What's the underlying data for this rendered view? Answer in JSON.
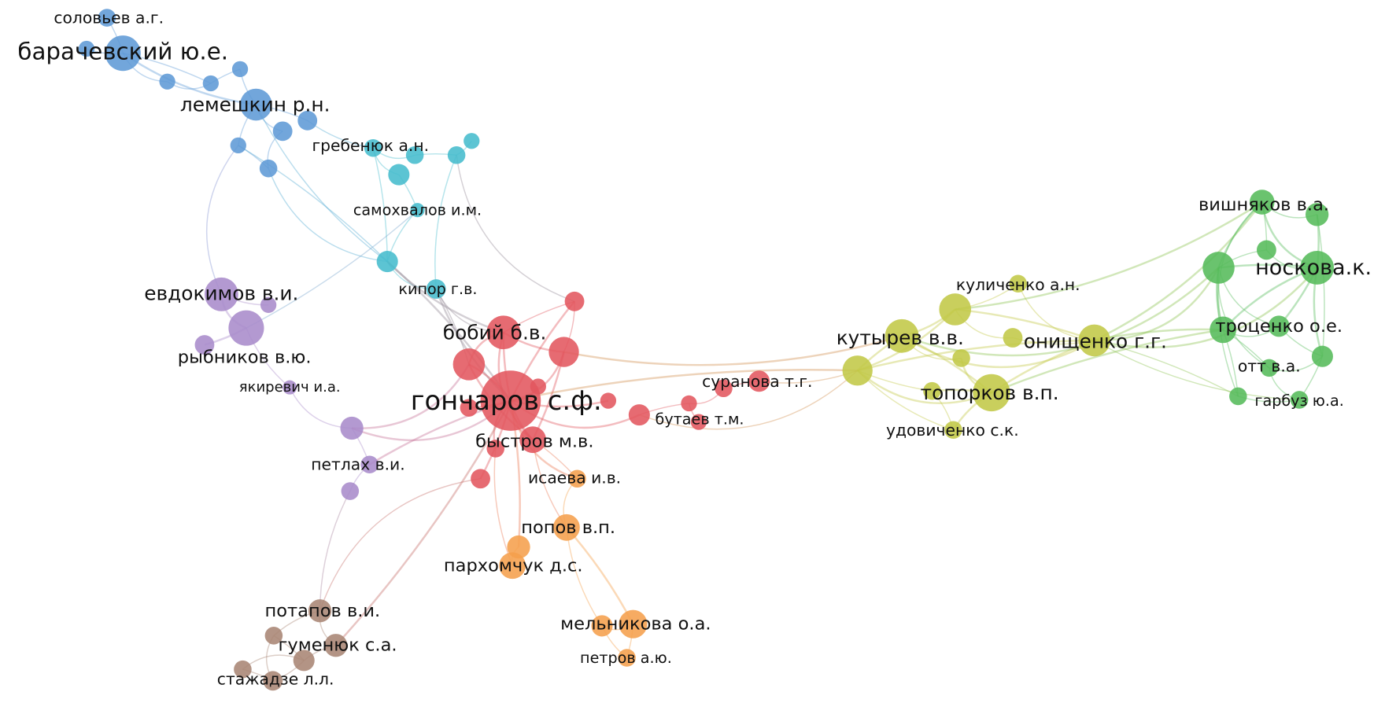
{
  "network": {
    "clusters": {
      "blue": "#5f9ad6",
      "cyan": "#45bccd",
      "purple": "#a98bcb",
      "red": "#e2575e",
      "orange": "#f59f4c",
      "brown": "#a88574",
      "olive": "#c2c847",
      "green": "#55bb5a"
    },
    "labels": [
      "соловьев а.г.",
      "барачевский ю.е.",
      "лемешкин р.н.",
      "гребенюк а.н.",
      "самохвалов и.м.",
      "кипор г.в.",
      "евдокимов в.и.",
      "рыбников в.ю.",
      "якиревич и.а.",
      "петлах в.и.",
      "бобий б.в.",
      "гончаров с.ф.",
      "быстров м.в.",
      "бутаев т.м.",
      "суранова т.г.",
      "исаева и.в.",
      "попов в.п.",
      "пархомчук д.с.",
      "мельникова о.а.",
      "петров а.ю.",
      "потапов в.и.",
      "гуменюк с.а.",
      "стажадзе л.л.",
      "кутырев в.в.",
      "куличенко а.н.",
      "онищенко г.г.",
      "топорков в.п.",
      "удовиченко с.к.",
      "вишняков в.а.",
      "носкова.к.",
      "троценко о.е.",
      "отт в.а.",
      "гарбуз ю.а."
    ]
  }
}
